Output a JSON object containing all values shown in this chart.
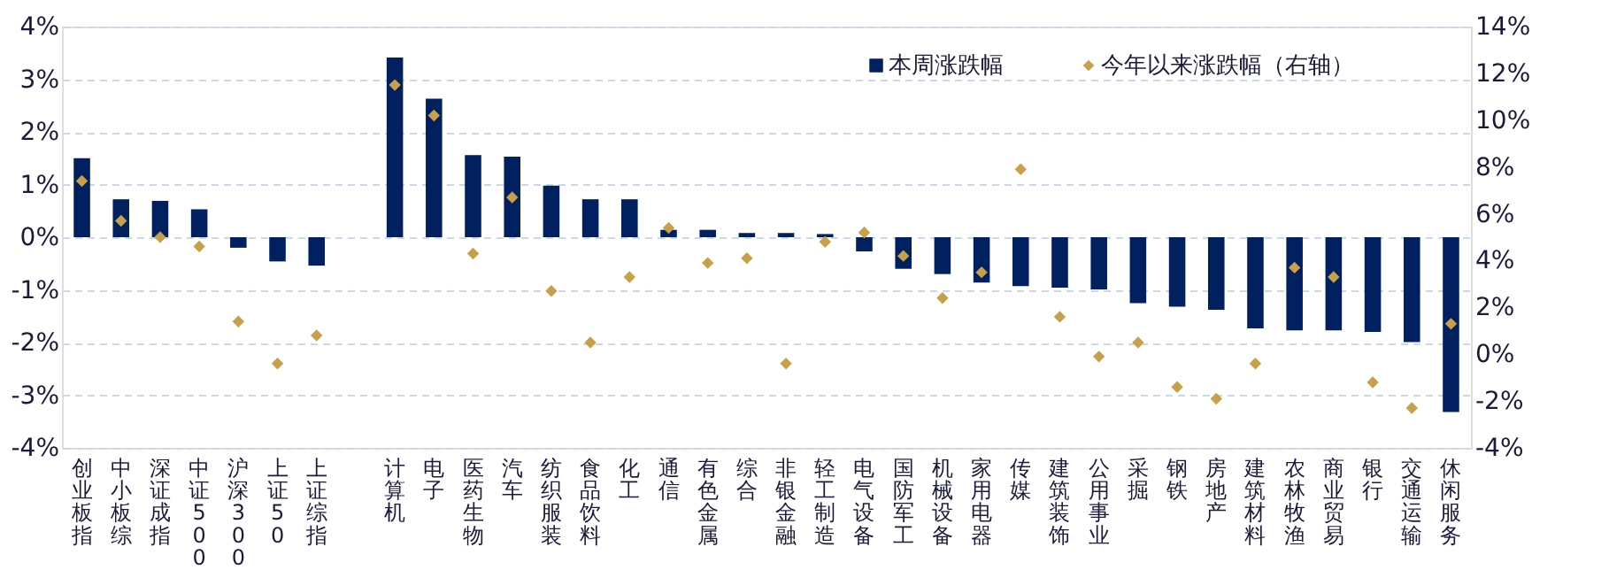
{
  "chart_data": {
    "type": "bar",
    "categories": [
      "创业板指",
      "中小板综",
      "深证成指",
      "中证500",
      "沪深300",
      "上证50",
      "上证综指",
      null,
      "计算机",
      "电子",
      "医药生物",
      "汽车",
      "纺织服装",
      "食品饮料",
      "化工",
      "通信",
      "有色金属",
      "综合",
      "非银金融",
      "轻工制造",
      "电气设备",
      "国防军工",
      "机械设备",
      "家用电器",
      "传媒",
      "建筑装饰",
      "公用事业",
      "采掘",
      "钢铁",
      "房地产",
      "建筑材料",
      "农林牧渔",
      "商业贸易",
      "银行",
      "交通运输",
      "休闲服务"
    ],
    "series": [
      {
        "name": "本周涨跌幅",
        "color": "#002060",
        "values": [
          1.5,
          0.72,
          0.69,
          0.53,
          -0.2,
          -0.46,
          -0.54,
          null,
          3.41,
          2.63,
          1.56,
          1.53,
          0.98,
          0.72,
          0.72,
          0.14,
          0.14,
          0.08,
          0.08,
          0.06,
          -0.27,
          -0.6,
          -0.7,
          -0.86,
          -0.93,
          -0.96,
          -0.99,
          -1.25,
          -1.32,
          -1.38,
          -1.73,
          -1.77,
          -1.77,
          -1.8,
          -1.99,
          -3.32
        ]
      },
      {
        "name": "今年以来涨跌幅（右轴）",
        "type": "scatter",
        "axis": "y2",
        "color": "#c9a04a",
        "values": [
          7.4,
          5.7,
          5.0,
          4.6,
          1.4,
          -0.4,
          0.8,
          null,
          11.5,
          10.2,
          4.3,
          6.7,
          2.7,
          0.5,
          3.3,
          5.4,
          3.9,
          4.1,
          -0.4,
          4.8,
          5.2,
          4.2,
          2.4,
          3.5,
          7.9,
          1.6,
          -0.1,
          0.5,
          -1.4,
          -1.9,
          -0.4,
          3.7,
          3.3,
          -1.2,
          -2.3,
          1.3
        ]
      }
    ],
    "ylim": [
      -4,
      4
    ],
    "yticks": [
      {
        "value": -4,
        "label": "-4%"
      },
      {
        "value": -3,
        "label": "-3%"
      },
      {
        "value": -2,
        "label": "-2%"
      },
      {
        "value": -1,
        "label": "-1%"
      },
      {
        "value": 0,
        "label": "0%"
      },
      {
        "value": 1,
        "label": "1%"
      },
      {
        "value": 2,
        "label": "2%"
      },
      {
        "value": 3,
        "label": "3%"
      },
      {
        "value": 4,
        "label": "4%"
      }
    ],
    "y2lim": [
      -4,
      14
    ],
    "y2ticks": [
      {
        "value": -4,
        "label": "-4%"
      },
      {
        "value": -2,
        "label": "-2%"
      },
      {
        "value": 0,
        "label": "0%"
      },
      {
        "value": 2,
        "label": "2%"
      },
      {
        "value": 4,
        "label": "4%"
      },
      {
        "value": 6,
        "label": "6%"
      },
      {
        "value": 8,
        "label": "8%"
      },
      {
        "value": 10,
        "label": "10%"
      },
      {
        "value": 12,
        "label": "12%"
      },
      {
        "value": 14,
        "label": "14%"
      }
    ],
    "grid": "y",
    "legend": "top right",
    "marker": "diamond"
  }
}
